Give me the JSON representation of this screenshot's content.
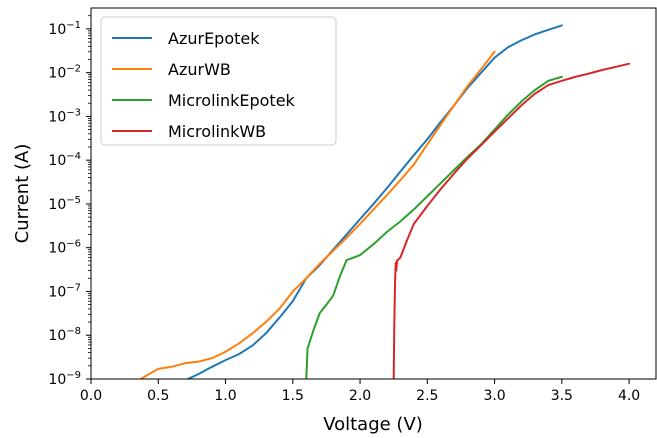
{
  "chart_data": {
    "type": "line",
    "title": "",
    "xlabel": "Voltage (V)",
    "ylabel": "Current (A)",
    "xlim": [
      0.0,
      4.2
    ],
    "ylim": [
      1e-09,
      0.3
    ],
    "yscale": "log",
    "grid": false,
    "legend_position": "top-left",
    "x_ticks": [
      "0.0",
      "0.5",
      "1.0",
      "1.5",
      "2.0",
      "2.5",
      "3.0",
      "3.5",
      "4.0"
    ],
    "y_ticks": [
      {
        "exp": -9,
        "label": "10",
        "sup": "−9"
      },
      {
        "exp": -8,
        "label": "10",
        "sup": "−8"
      },
      {
        "exp": -7,
        "label": "10",
        "sup": "−7"
      },
      {
        "exp": -6,
        "label": "10",
        "sup": "−6"
      },
      {
        "exp": -5,
        "label": "10",
        "sup": "−5"
      },
      {
        "exp": -4,
        "label": "10",
        "sup": "−4"
      },
      {
        "exp": -3,
        "label": "10",
        "sup": "−3"
      },
      {
        "exp": -2,
        "label": "10",
        "sup": "−2"
      },
      {
        "exp": -1,
        "label": "10",
        "sup": "−1"
      }
    ],
    "series": [
      {
        "name": "AzurEpotek",
        "color": "#1f77b4",
        "points": [
          [
            0.72,
            1e-09
          ],
          [
            0.8,
            1.3e-09
          ],
          [
            0.9,
            1.9e-09
          ],
          [
            1.0,
            2.7e-09
          ],
          [
            1.1,
            3.7e-09
          ],
          [
            1.2,
            5.8e-09
          ],
          [
            1.3,
            1.1e-08
          ],
          [
            1.4,
            2.5e-08
          ],
          [
            1.5,
            6e-08
          ],
          [
            1.6,
            2e-07
          ],
          [
            1.7,
            4e-07
          ],
          [
            1.8,
            9e-07
          ],
          [
            1.9,
            2e-06
          ],
          [
            2.0,
            4.5e-06
          ],
          [
            2.1,
            1e-05
          ],
          [
            2.2,
            2.3e-05
          ],
          [
            2.3,
            5.5e-05
          ],
          [
            2.4,
            0.00013
          ],
          [
            2.5,
            0.0003
          ],
          [
            2.6,
            0.00075
          ],
          [
            2.7,
            0.0018
          ],
          [
            2.8,
            0.0045
          ],
          [
            2.9,
            0.01
          ],
          [
            3.0,
            0.022
          ],
          [
            3.1,
            0.038
          ],
          [
            3.2,
            0.055
          ],
          [
            3.3,
            0.075
          ],
          [
            3.4,
            0.095
          ],
          [
            3.5,
            0.12
          ]
        ]
      },
      {
        "name": "AzurWB",
        "color": "#ff7f0e",
        "points": [
          [
            0.37,
            1e-09
          ],
          [
            0.45,
            1.4e-09
          ],
          [
            0.5,
            1.7e-09
          ],
          [
            0.6,
            1.9e-09
          ],
          [
            0.7,
            2.3e-09
          ],
          [
            0.8,
            2.5e-09
          ],
          [
            0.9,
            3e-09
          ],
          [
            1.0,
            4.2e-09
          ],
          [
            1.1,
            6.5e-09
          ],
          [
            1.2,
            1.1e-08
          ],
          [
            1.3,
            2e-08
          ],
          [
            1.4,
            4e-08
          ],
          [
            1.5,
            1e-07
          ],
          [
            1.6,
            2e-07
          ],
          [
            1.7,
            4.3e-07
          ],
          [
            1.8,
            8.5e-07
          ],
          [
            1.9,
            1.7e-06
          ],
          [
            2.0,
            3.5e-06
          ],
          [
            2.1,
            7.5e-06
          ],
          [
            2.2,
            1.6e-05
          ],
          [
            2.3,
            3.5e-05
          ],
          [
            2.4,
            8e-05
          ],
          [
            2.5,
            0.00023
          ],
          [
            2.6,
            0.00065
          ],
          [
            2.7,
            0.0018
          ],
          [
            2.8,
            0.005
          ],
          [
            2.9,
            0.012
          ],
          [
            3.0,
            0.03
          ]
        ]
      },
      {
        "name": "MicrolinkEpotek",
        "color": "#2ca02c",
        "points": [
          [
            1.6,
            1e-09
          ],
          [
            1.61,
            5e-09
          ],
          [
            1.65,
            1.2e-08
          ],
          [
            1.7,
            3.2e-08
          ],
          [
            1.75,
            5e-08
          ],
          [
            1.8,
            8e-08
          ],
          [
            1.85,
            2.2e-07
          ],
          [
            1.9,
            5.2e-07
          ],
          [
            2.0,
            6.8e-07
          ],
          [
            2.1,
            1.2e-06
          ],
          [
            2.2,
            2.3e-06
          ],
          [
            2.3,
            4e-06
          ],
          [
            2.4,
            7.5e-06
          ],
          [
            2.5,
            1.5e-05
          ],
          [
            2.6,
            3e-05
          ],
          [
            2.7,
            6e-05
          ],
          [
            2.8,
            0.00012
          ],
          [
            2.9,
            0.00023
          ],
          [
            3.0,
            0.0005
          ],
          [
            3.1,
            0.0011
          ],
          [
            3.2,
            0.0022
          ],
          [
            3.3,
            0.004
          ],
          [
            3.4,
            0.0065
          ],
          [
            3.5,
            0.008
          ]
        ]
      },
      {
        "name": "MicrolinkWB",
        "color": "#d62728",
        "points": [
          [
            2.25,
            1e-09
          ],
          [
            2.255,
            2e-08
          ],
          [
            2.26,
            1.5e-07
          ],
          [
            2.265,
            4.5e-07
          ],
          [
            2.27,
            3e-07
          ],
          [
            2.275,
            5e-07
          ],
          [
            2.3,
            6e-07
          ],
          [
            2.35,
            1.5e-06
          ],
          [
            2.4,
            3.5e-06
          ],
          [
            2.5,
            9e-06
          ],
          [
            2.6,
            2.2e-05
          ],
          [
            2.7,
            5e-05
          ],
          [
            2.8,
            0.00011
          ],
          [
            2.9,
            0.00022
          ],
          [
            3.0,
            0.00045
          ],
          [
            3.1,
            0.0009
          ],
          [
            3.2,
            0.0018
          ],
          [
            3.3,
            0.0033
          ],
          [
            3.4,
            0.0052
          ],
          [
            3.5,
            0.0065
          ],
          [
            3.6,
            0.008
          ],
          [
            3.7,
            0.0095
          ],
          [
            3.8,
            0.0115
          ],
          [
            3.9,
            0.0135
          ],
          [
            4.0,
            0.016
          ]
        ]
      }
    ]
  }
}
